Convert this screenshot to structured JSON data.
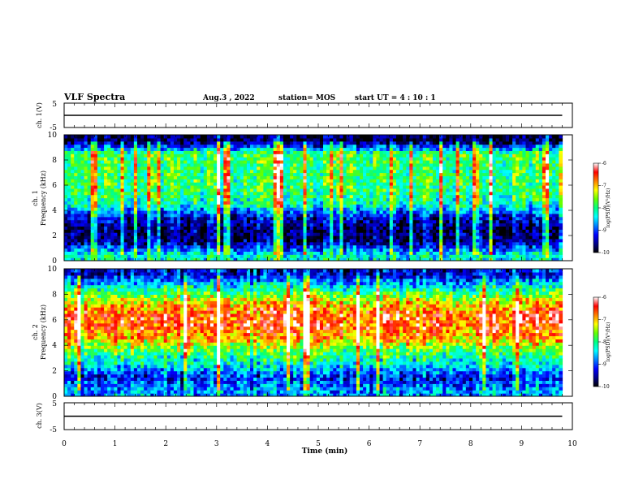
{
  "header": {
    "title": "VLF Spectra",
    "date": "Aug.3  , 2022",
    "station": "station= MOS",
    "start_ut": "start  UT =   4 : 10 : 1"
  },
  "colors": {
    "spectrogram_ramp": [
      "#000000",
      "#00008b",
      "#0000ff",
      "#0080ff",
      "#00ffff",
      "#00ff80",
      "#66ff00",
      "#ffff00",
      "#ff8000",
      "#ff0000",
      "#ffffff"
    ]
  },
  "chart_data": [
    {
      "type": "line",
      "name": "ch1-waveform",
      "ylabel": "ch. 1(V)",
      "ylim": [
        -5,
        5
      ],
      "ytick_labels": [
        "5",
        "-5"
      ],
      "x": [
        0,
        9.8
      ],
      "values": [
        0,
        0
      ]
    },
    {
      "type": "heatmap",
      "name": "ch1-spectrogram",
      "ylabel": "ch. 1\nFrequency (kHz)",
      "ylabel_line1": "ch. 1",
      "ylabel_line2": "Frequency (kHz)",
      "ylim": [
        0,
        10
      ],
      "ytick_labels": [
        "0",
        "2",
        "4",
        "6",
        "8",
        "10"
      ],
      "xlim": [
        0,
        10
      ],
      "data_extent_min": 9.8,
      "colorbar": {
        "label": "log(PSD)(V²/Hz)",
        "ticks": [
          "-6",
          "-7",
          "-8",
          "-9",
          "-10"
        ],
        "range": [
          -10,
          -6
        ]
      },
      "frequency_profile_khz": [
        0.5,
        1.5,
        2.5,
        3.5,
        4.5,
        5.5,
        6.5,
        7.5,
        8.5,
        9.5
      ],
      "log_psd_profile": [
        -8.3,
        -9.6,
        -9.7,
        -9.3,
        -8.2,
        -7.9,
        -7.9,
        -7.9,
        -7.8,
        -9.8
      ]
    },
    {
      "type": "heatmap",
      "name": "ch2-spectrogram",
      "ylabel": "ch. 2\nFrequency (kHz)",
      "ylabel_line1": "ch. 2",
      "ylabel_line2": "Frequency (kHz)",
      "ylim": [
        0,
        10
      ],
      "ytick_labels": [
        "0",
        "2",
        "4",
        "6",
        "8",
        "10"
      ],
      "xlim": [
        0,
        10
      ],
      "data_extent_min": 9.8,
      "colorbar": {
        "label": "log(PSD)(V²/Hz)",
        "ticks": [
          "-6",
          "-7",
          "-8",
          "-9",
          "-10"
        ],
        "range": [
          -10,
          -6
        ]
      },
      "frequency_profile_khz": [
        0.5,
        1.5,
        2.5,
        3.5,
        4.5,
        5.5,
        6.5,
        7.5,
        8.5,
        9.5
      ],
      "log_psd_profile": [
        -8.7,
        -9.2,
        -8.4,
        -7.9,
        -7.0,
        -6.6,
        -6.6,
        -7.2,
        -8.2,
        -9.3
      ]
    },
    {
      "type": "line",
      "name": "ch3-waveform",
      "ylabel": "ch. 3(V)",
      "ylim": [
        -5,
        5
      ],
      "ytick_labels": [
        "5",
        "-5"
      ],
      "x": [
        0,
        9.8
      ],
      "values": [
        0,
        0
      ]
    }
  ],
  "xaxis": {
    "label": "Time  (min)",
    "range": [
      0,
      10
    ],
    "tick_labels": [
      "0",
      "1",
      "2",
      "3",
      "4",
      "5",
      "6",
      "7",
      "8",
      "9",
      "10"
    ]
  }
}
